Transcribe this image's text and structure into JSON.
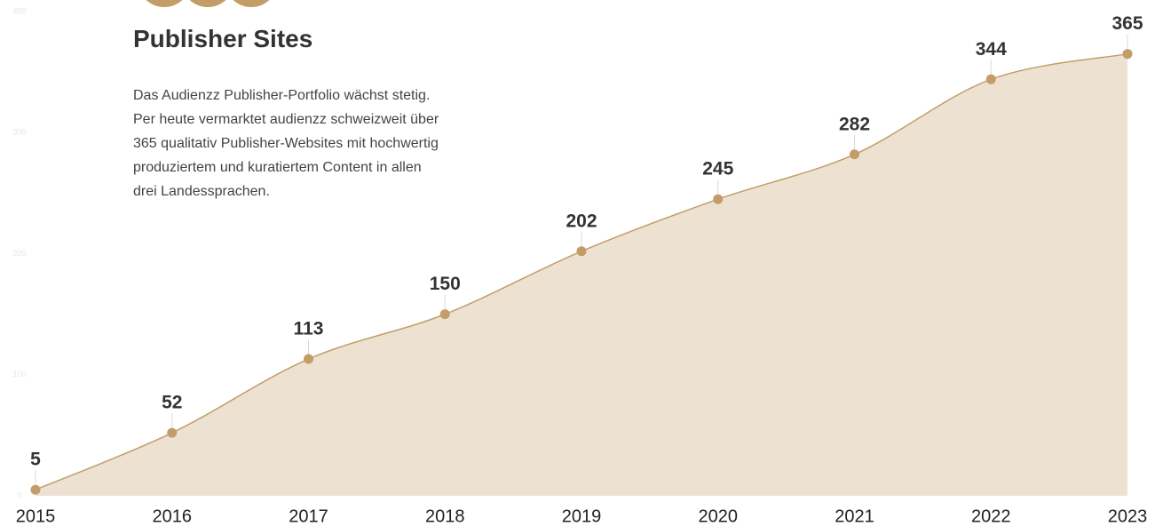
{
  "chart_data": {
    "type": "area",
    "title": "Publisher Sites",
    "description": "Das Audienzz Publisher-Portfolio wächst stetig. Per heute vermarktet audienzz schweizweit über 365 qualitativ Publisher-Websites mit hochwertig produziertem und kuratiertem Content in allen drei Landessprachen.",
    "categories": [
      "2015",
      "2016",
      "2017",
      "2018",
      "2019",
      "2020",
      "2021",
      "2022",
      "2023"
    ],
    "values": [
      5,
      52,
      113,
      150,
      202,
      245,
      282,
      344,
      365
    ],
    "color": "#c29d68",
    "fill": "#ede2d2",
    "ylim": [
      0,
      400
    ],
    "yticks": [
      0,
      100,
      200,
      300,
      400
    ]
  }
}
